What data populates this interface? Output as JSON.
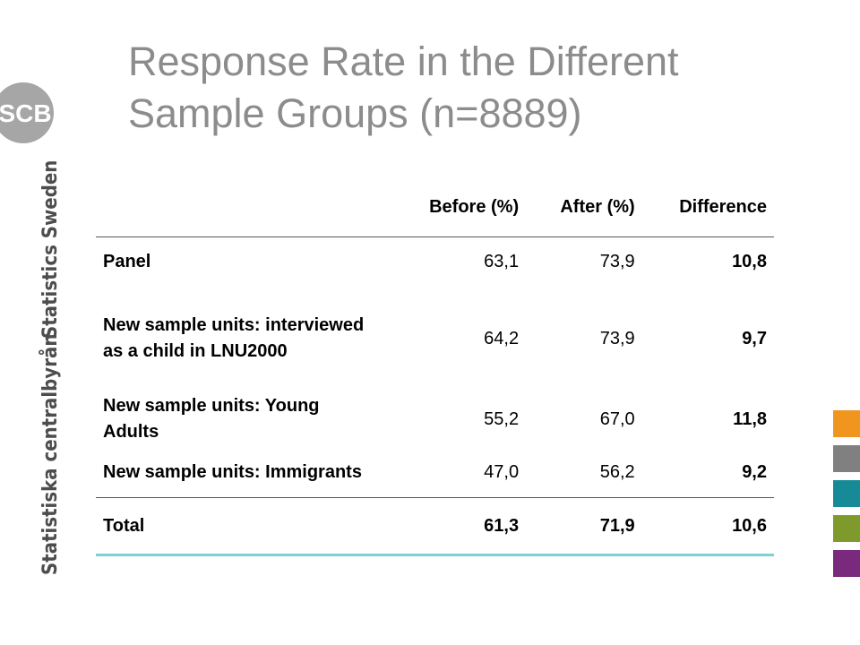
{
  "slide": {
    "title_line1": "Response Rate in the Different",
    "title_line2": "Sample Groups (n=8889)",
    "logo_text": "SCB",
    "vertical_text_1": "Statistics Sweden",
    "vertical_text_2": "Statistiska centralbyrån"
  },
  "colors": {
    "title": "#8c8c8c",
    "logo": "#a6a6a6",
    "swatches": [
      "#f0961e",
      "#808080",
      "#168a96",
      "#7f9a2c",
      "#7a2a7d"
    ],
    "rule_accent": "#7fd0d6"
  },
  "table": {
    "headers": [
      "",
      "Before (%)",
      "After (%)",
      "Difference"
    ],
    "rows": [
      {
        "label": "Panel",
        "before": "63,1",
        "after": "73,9",
        "diff": "10,8"
      },
      {
        "label": "New sample units: interviewed as a child in LNU2000",
        "before": "64,2",
        "after": "73,9",
        "diff": "9,7"
      },
      {
        "label": "New sample units: Young Adults",
        "before": "55,2",
        "after": "67,0",
        "diff": "11,8"
      },
      {
        "label": "New sample units: Immigrants",
        "before": "47,0",
        "after": "56,2",
        "diff": "9,2"
      },
      {
        "label": "Total",
        "before": "61,3",
        "after": "71,9",
        "diff": "10,6"
      }
    ]
  }
}
